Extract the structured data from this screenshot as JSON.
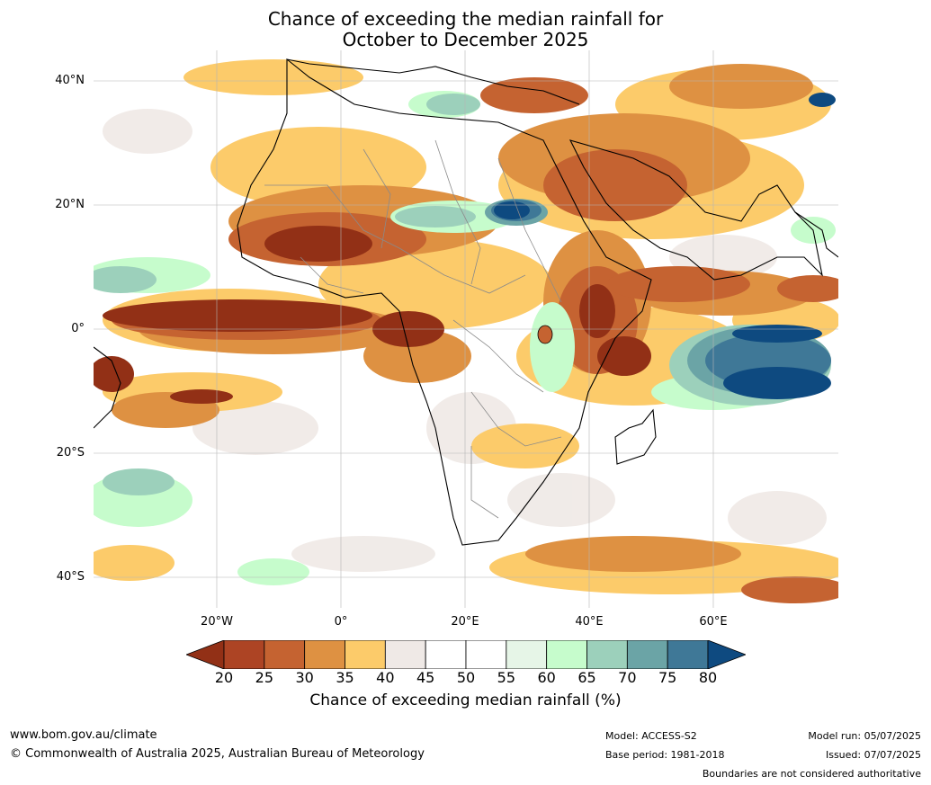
{
  "title_line1": "Chance of exceeding the median rainfall for",
  "title_line2": "October to December 2025",
  "latitude_labels": [
    "40°N",
    "20°N",
    "0°",
    "20°S",
    "40°S"
  ],
  "longitude_labels": [
    "20°W",
    "0°",
    "20°E",
    "40°E",
    "60°E"
  ],
  "colorbar": {
    "ticks": [
      "20",
      "25",
      "30",
      "35",
      "40",
      "45",
      "50",
      "55",
      "60",
      "65",
      "70",
      "75",
      "80"
    ],
    "colors": [
      "#923016",
      "#ad4424",
      "#c56331",
      "#de9142",
      "#fccb6a",
      "#efe9e6",
      "#ffffff",
      "#ffffff",
      "#e6f5e7",
      "#c6fccc",
      "#9cd0bb",
      "#6ba4a6",
      "#3f7897",
      "#0e4a80"
    ],
    "title": "Chance of exceeding median rainfall (%)"
  },
  "footer": {
    "website": "www.bom.gov.au/climate",
    "copyright": "© Commonwealth of Australia 2025, Australian Bureau of Meteorology",
    "model": "Model: ACCESS-S2",
    "base_period": "Base period: 1981-2018",
    "model_run": "Model run: 05/07/2025",
    "issued": "Issued: 07/07/2025",
    "disclaimer": "Boundaries are not considered authoritative"
  }
}
